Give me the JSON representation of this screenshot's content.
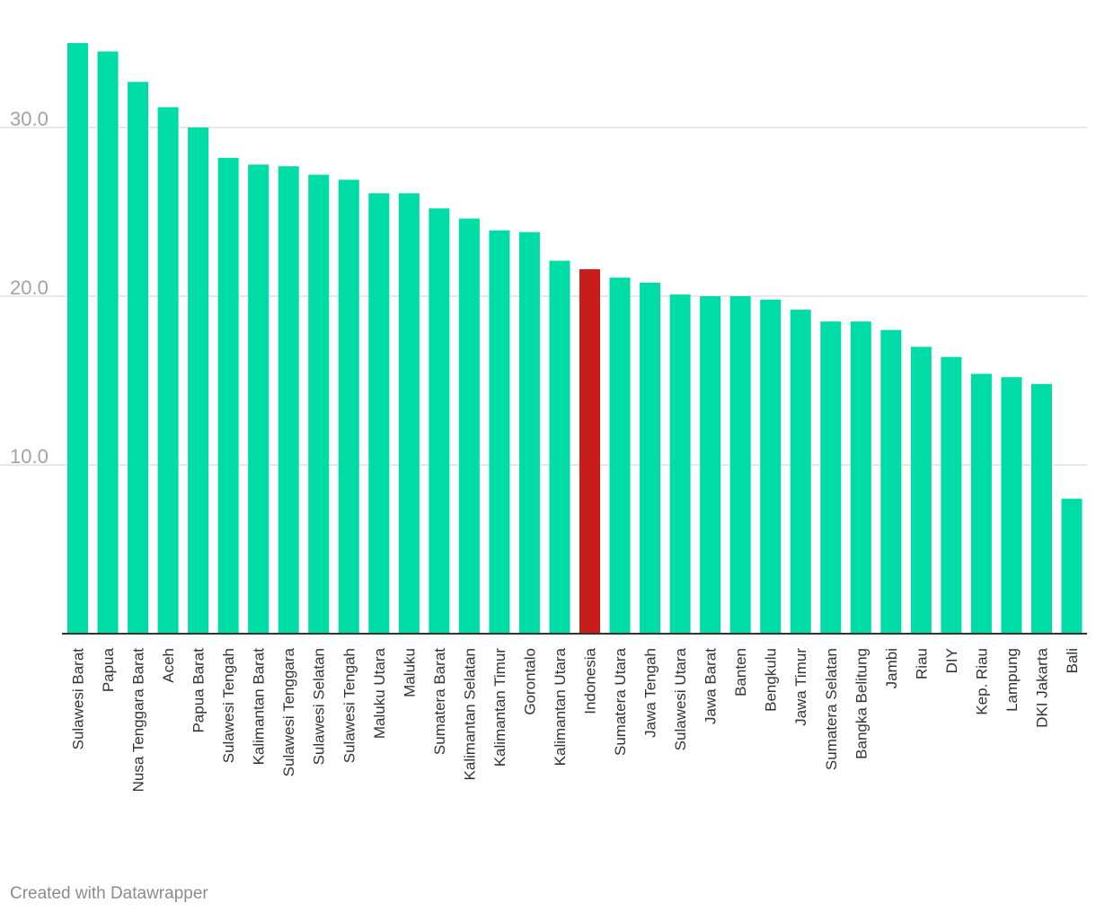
{
  "chart_data": {
    "type": "bar",
    "title": "",
    "xlabel": "",
    "ylabel": "",
    "ylim": [
      0,
      35
    ],
    "grid": true,
    "yticks": [
      "10.0",
      "20.0",
      "30.0"
    ],
    "ytick_values": [
      10,
      20,
      30
    ],
    "categories": [
      "Sulawesi Barat",
      "Papua",
      "Nusa Tenggara Barat",
      "Aceh",
      "Papua Barat",
      "Sulawesi Tengah",
      "Kalimantan Barat",
      "Sulawesi Tenggara",
      "Sulawesi Selatan",
      "Sulawesi Tengah",
      "Maluku Utara",
      "Maluku",
      "Sumatera Barat",
      "Kalimantan Selatan",
      "Kalimantan Timur",
      "Gorontalo",
      "Kalimantan Utara",
      "Indonesia",
      "Sumatera Utara",
      "Jawa Tengah",
      "Sulawesi Utara",
      "Jawa Barat",
      "Banten",
      "Bengkulu",
      "Jawa Timur",
      "Sumatera Selatan",
      "Bangka Belitung",
      "Jambi",
      "Riau",
      "DIY",
      "Kep. Riau",
      "Lampung",
      "DKI Jakarta",
      "Bali"
    ],
    "values": [
      35.0,
      34.5,
      32.7,
      31.2,
      30.0,
      28.2,
      27.8,
      27.7,
      27.2,
      26.9,
      26.1,
      26.1,
      25.2,
      24.6,
      23.9,
      23.8,
      22.1,
      21.6,
      21.1,
      20.8,
      20.1,
      20.0,
      20.0,
      19.8,
      19.2,
      18.5,
      18.5,
      18.0,
      17.0,
      16.4,
      15.4,
      15.2,
      14.8,
      8.0
    ],
    "highlight_category": "Indonesia",
    "colors": {
      "bar": "#00dca6",
      "highlight": "#c71e1d",
      "grid": "#e1e1e1",
      "axis": "#333333",
      "tick_label": "#a3a3a3",
      "category_label": "#333333"
    }
  },
  "footer": {
    "credit": "Created with Datawrapper"
  }
}
